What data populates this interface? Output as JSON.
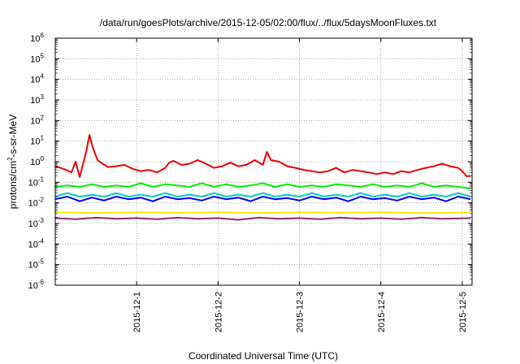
{
  "chart_data": {
    "type": "line",
    "title": "/data/run/goesPlots/archive/2015-12-05/02:00/flux/../flux/5daysMoonFluxes.txt",
    "xlabel": "Coordinated Universal Time (UTC)",
    "ylabel": "protons/cm²-s-sr-MeV",
    "ylabel_parts": [
      "protons/cm",
      "2",
      "-s-sr-MeV"
    ],
    "y_scale": "log",
    "ylim": [
      1e-06,
      1000000.0
    ],
    "xlim_days": [
      0,
      5.12
    ],
    "grid": true,
    "y_ticks": [
      {
        "exp": "-6",
        "value": 1e-06
      },
      {
        "exp": "-5",
        "value": 1e-05
      },
      {
        "exp": "-4",
        "value": 0.0001
      },
      {
        "exp": "-3",
        "value": 0.001
      },
      {
        "exp": "-2",
        "value": 0.01
      },
      {
        "exp": "-1",
        "value": 0.1
      },
      {
        "exp": "0",
        "value": 1
      },
      {
        "exp": "1",
        "value": 10
      },
      {
        "exp": "2",
        "value": 100
      },
      {
        "exp": "3",
        "value": 1000
      },
      {
        "exp": "4",
        "value": 10000
      },
      {
        "exp": "5",
        "value": 100000
      },
      {
        "exp": "6",
        "value": 1000000
      }
    ],
    "x_ticks": [
      {
        "label": "2015-12-1",
        "day": 1.0
      },
      {
        "label": "2015-12-2",
        "day": 2.0
      },
      {
        "label": "2015-12-3",
        "day": 3.0
      },
      {
        "label": "2015-12-4",
        "day": 4.0
      },
      {
        "label": "2015-12-5",
        "day": 5.0
      }
    ],
    "series": [
      {
        "color": "#ee0000",
        "points": [
          [
            0,
            0.6
          ],
          [
            0.1,
            0.45
          ],
          [
            0.2,
            0.3
          ],
          [
            0.25,
            1.0
          ],
          [
            0.3,
            0.18
          ],
          [
            0.38,
            3.0
          ],
          [
            0.42,
            20
          ],
          [
            0.46,
            5
          ],
          [
            0.52,
            1.2
          ],
          [
            0.58,
            0.8
          ],
          [
            0.65,
            0.55
          ],
          [
            0.75,
            0.6
          ],
          [
            0.85,
            0.7
          ],
          [
            0.95,
            0.45
          ],
          [
            1.05,
            0.35
          ],
          [
            1.15,
            0.4
          ],
          [
            1.25,
            0.3
          ],
          [
            1.35,
            0.5
          ],
          [
            1.4,
            0.9
          ],
          [
            1.45,
            1.1
          ],
          [
            1.55,
            0.7
          ],
          [
            1.65,
            0.8
          ],
          [
            1.75,
            1.2
          ],
          [
            1.85,
            0.8
          ],
          [
            1.95,
            0.5
          ],
          [
            2.05,
            0.6
          ],
          [
            2.15,
            0.9
          ],
          [
            2.25,
            0.6
          ],
          [
            2.35,
            0.7
          ],
          [
            2.45,
            1.2
          ],
          [
            2.55,
            0.7
          ],
          [
            2.6,
            3.0
          ],
          [
            2.65,
            1.2
          ],
          [
            2.75,
            1.0
          ],
          [
            2.85,
            0.6
          ],
          [
            2.95,
            0.5
          ],
          [
            3.05,
            0.4
          ],
          [
            3.15,
            0.35
          ],
          [
            3.25,
            0.3
          ],
          [
            3.35,
            0.35
          ],
          [
            3.45,
            0.5
          ],
          [
            3.55,
            0.3
          ],
          [
            3.65,
            0.4
          ],
          [
            3.75,
            0.35
          ],
          [
            3.85,
            0.3
          ],
          [
            3.95,
            0.25
          ],
          [
            4.05,
            0.3
          ],
          [
            4.15,
            0.25
          ],
          [
            4.25,
            0.35
          ],
          [
            4.35,
            0.3
          ],
          [
            4.45,
            0.4
          ],
          [
            4.55,
            0.5
          ],
          [
            4.65,
            0.6
          ],
          [
            4.75,
            0.8
          ],
          [
            4.85,
            0.6
          ],
          [
            4.95,
            0.5
          ],
          [
            5.0,
            0.35
          ],
          [
            5.05,
            0.2
          ],
          [
            5.1,
            0.2
          ]
        ]
      },
      {
        "color": "#00ee00",
        "points": [
          [
            0,
            0.06
          ],
          [
            0.15,
            0.07
          ],
          [
            0.3,
            0.06
          ],
          [
            0.45,
            0.08
          ],
          [
            0.6,
            0.06
          ],
          [
            0.75,
            0.07
          ],
          [
            0.9,
            0.06
          ],
          [
            1.05,
            0.09
          ],
          [
            1.2,
            0.06
          ],
          [
            1.35,
            0.08
          ],
          [
            1.5,
            0.07
          ],
          [
            1.65,
            0.06
          ],
          [
            1.8,
            0.09
          ],
          [
            1.95,
            0.06
          ],
          [
            2.1,
            0.08
          ],
          [
            2.25,
            0.06
          ],
          [
            2.4,
            0.07
          ],
          [
            2.55,
            0.09
          ],
          [
            2.7,
            0.06
          ],
          [
            2.85,
            0.08
          ],
          [
            3.0,
            0.06
          ],
          [
            3.15,
            0.07
          ],
          [
            3.3,
            0.06
          ],
          [
            3.45,
            0.08
          ],
          [
            3.6,
            0.07
          ],
          [
            3.75,
            0.06
          ],
          [
            3.9,
            0.08
          ],
          [
            4.05,
            0.06
          ],
          [
            4.2,
            0.07
          ],
          [
            4.35,
            0.06
          ],
          [
            4.5,
            0.09
          ],
          [
            4.65,
            0.06
          ],
          [
            4.8,
            0.07
          ],
          [
            4.95,
            0.06
          ],
          [
            5.1,
            0.05
          ]
        ]
      },
      {
        "color": "#00cccc",
        "points": [
          [
            0,
            0.02
          ],
          [
            0.15,
            0.03
          ],
          [
            0.3,
            0.02
          ],
          [
            0.45,
            0.025
          ],
          [
            0.6,
            0.02
          ],
          [
            0.75,
            0.03
          ],
          [
            0.9,
            0.02
          ],
          [
            1.05,
            0.025
          ],
          [
            1.2,
            0.02
          ],
          [
            1.35,
            0.03
          ],
          [
            1.5,
            0.02
          ],
          [
            1.65,
            0.025
          ],
          [
            1.8,
            0.02
          ],
          [
            1.95,
            0.03
          ],
          [
            2.1,
            0.02
          ],
          [
            2.25,
            0.025
          ],
          [
            2.4,
            0.02
          ],
          [
            2.55,
            0.03
          ],
          [
            2.7,
            0.02
          ],
          [
            2.85,
            0.025
          ],
          [
            3.0,
            0.02
          ],
          [
            3.15,
            0.03
          ],
          [
            3.3,
            0.02
          ],
          [
            3.45,
            0.025
          ],
          [
            3.6,
            0.02
          ],
          [
            3.75,
            0.03
          ],
          [
            3.9,
            0.02
          ],
          [
            4.05,
            0.025
          ],
          [
            4.2,
            0.02
          ],
          [
            4.35,
            0.03
          ],
          [
            4.5,
            0.02
          ],
          [
            4.65,
            0.025
          ],
          [
            4.8,
            0.02
          ],
          [
            4.95,
            0.03
          ],
          [
            5.1,
            0.02
          ]
        ]
      },
      {
        "color": "#0000ee",
        "points": [
          [
            0,
            0.015
          ],
          [
            0.15,
            0.02
          ],
          [
            0.3,
            0.012
          ],
          [
            0.45,
            0.018
          ],
          [
            0.6,
            0.013
          ],
          [
            0.75,
            0.02
          ],
          [
            0.9,
            0.015
          ],
          [
            1.05,
            0.018
          ],
          [
            1.2,
            0.012
          ],
          [
            1.35,
            0.02
          ],
          [
            1.5,
            0.015
          ],
          [
            1.65,
            0.017
          ],
          [
            1.8,
            0.013
          ],
          [
            1.95,
            0.02
          ],
          [
            2.1,
            0.015
          ],
          [
            2.25,
            0.018
          ],
          [
            2.4,
            0.012
          ],
          [
            2.55,
            0.02
          ],
          [
            2.7,
            0.015
          ],
          [
            2.85,
            0.017
          ],
          [
            3.0,
            0.013
          ],
          [
            3.15,
            0.02
          ],
          [
            3.3,
            0.015
          ],
          [
            3.45,
            0.018
          ],
          [
            3.6,
            0.012
          ],
          [
            3.75,
            0.02
          ],
          [
            3.9,
            0.015
          ],
          [
            4.05,
            0.017
          ],
          [
            4.2,
            0.013
          ],
          [
            4.35,
            0.02
          ],
          [
            4.5,
            0.015
          ],
          [
            4.65,
            0.018
          ],
          [
            4.8,
            0.012
          ],
          [
            4.95,
            0.02
          ],
          [
            5.1,
            0.015
          ]
        ]
      },
      {
        "color": "#eeee00",
        "points": [
          [
            0,
            0.0035
          ],
          [
            0.5,
            0.0032
          ],
          [
            1.0,
            0.0035
          ],
          [
            1.5,
            0.0033
          ],
          [
            2.0,
            0.0035
          ],
          [
            2.5,
            0.0032
          ],
          [
            3.0,
            0.0035
          ],
          [
            3.5,
            0.0033
          ],
          [
            4.0,
            0.0035
          ],
          [
            4.5,
            0.0032
          ],
          [
            5.1,
            0.0034
          ]
        ]
      },
      {
        "color": "#8b2b6b",
        "points": [
          [
            0,
            0.0018
          ],
          [
            0.25,
            0.0016
          ],
          [
            0.5,
            0.0019
          ],
          [
            0.75,
            0.0017
          ],
          [
            1.0,
            0.0018
          ],
          [
            1.25,
            0.0016
          ],
          [
            1.5,
            0.0019
          ],
          [
            1.75,
            0.0017
          ],
          [
            2.0,
            0.0018
          ],
          [
            2.25,
            0.0015
          ],
          [
            2.5,
            0.0019
          ],
          [
            2.75,
            0.0017
          ],
          [
            3.0,
            0.0018
          ],
          [
            3.25,
            0.0016
          ],
          [
            3.5,
            0.0019
          ],
          [
            3.75,
            0.0017
          ],
          [
            4.0,
            0.0018
          ],
          [
            4.25,
            0.0016
          ],
          [
            4.5,
            0.0019
          ],
          [
            4.75,
            0.0017
          ],
          [
            5.1,
            0.0018
          ]
        ]
      }
    ]
  }
}
